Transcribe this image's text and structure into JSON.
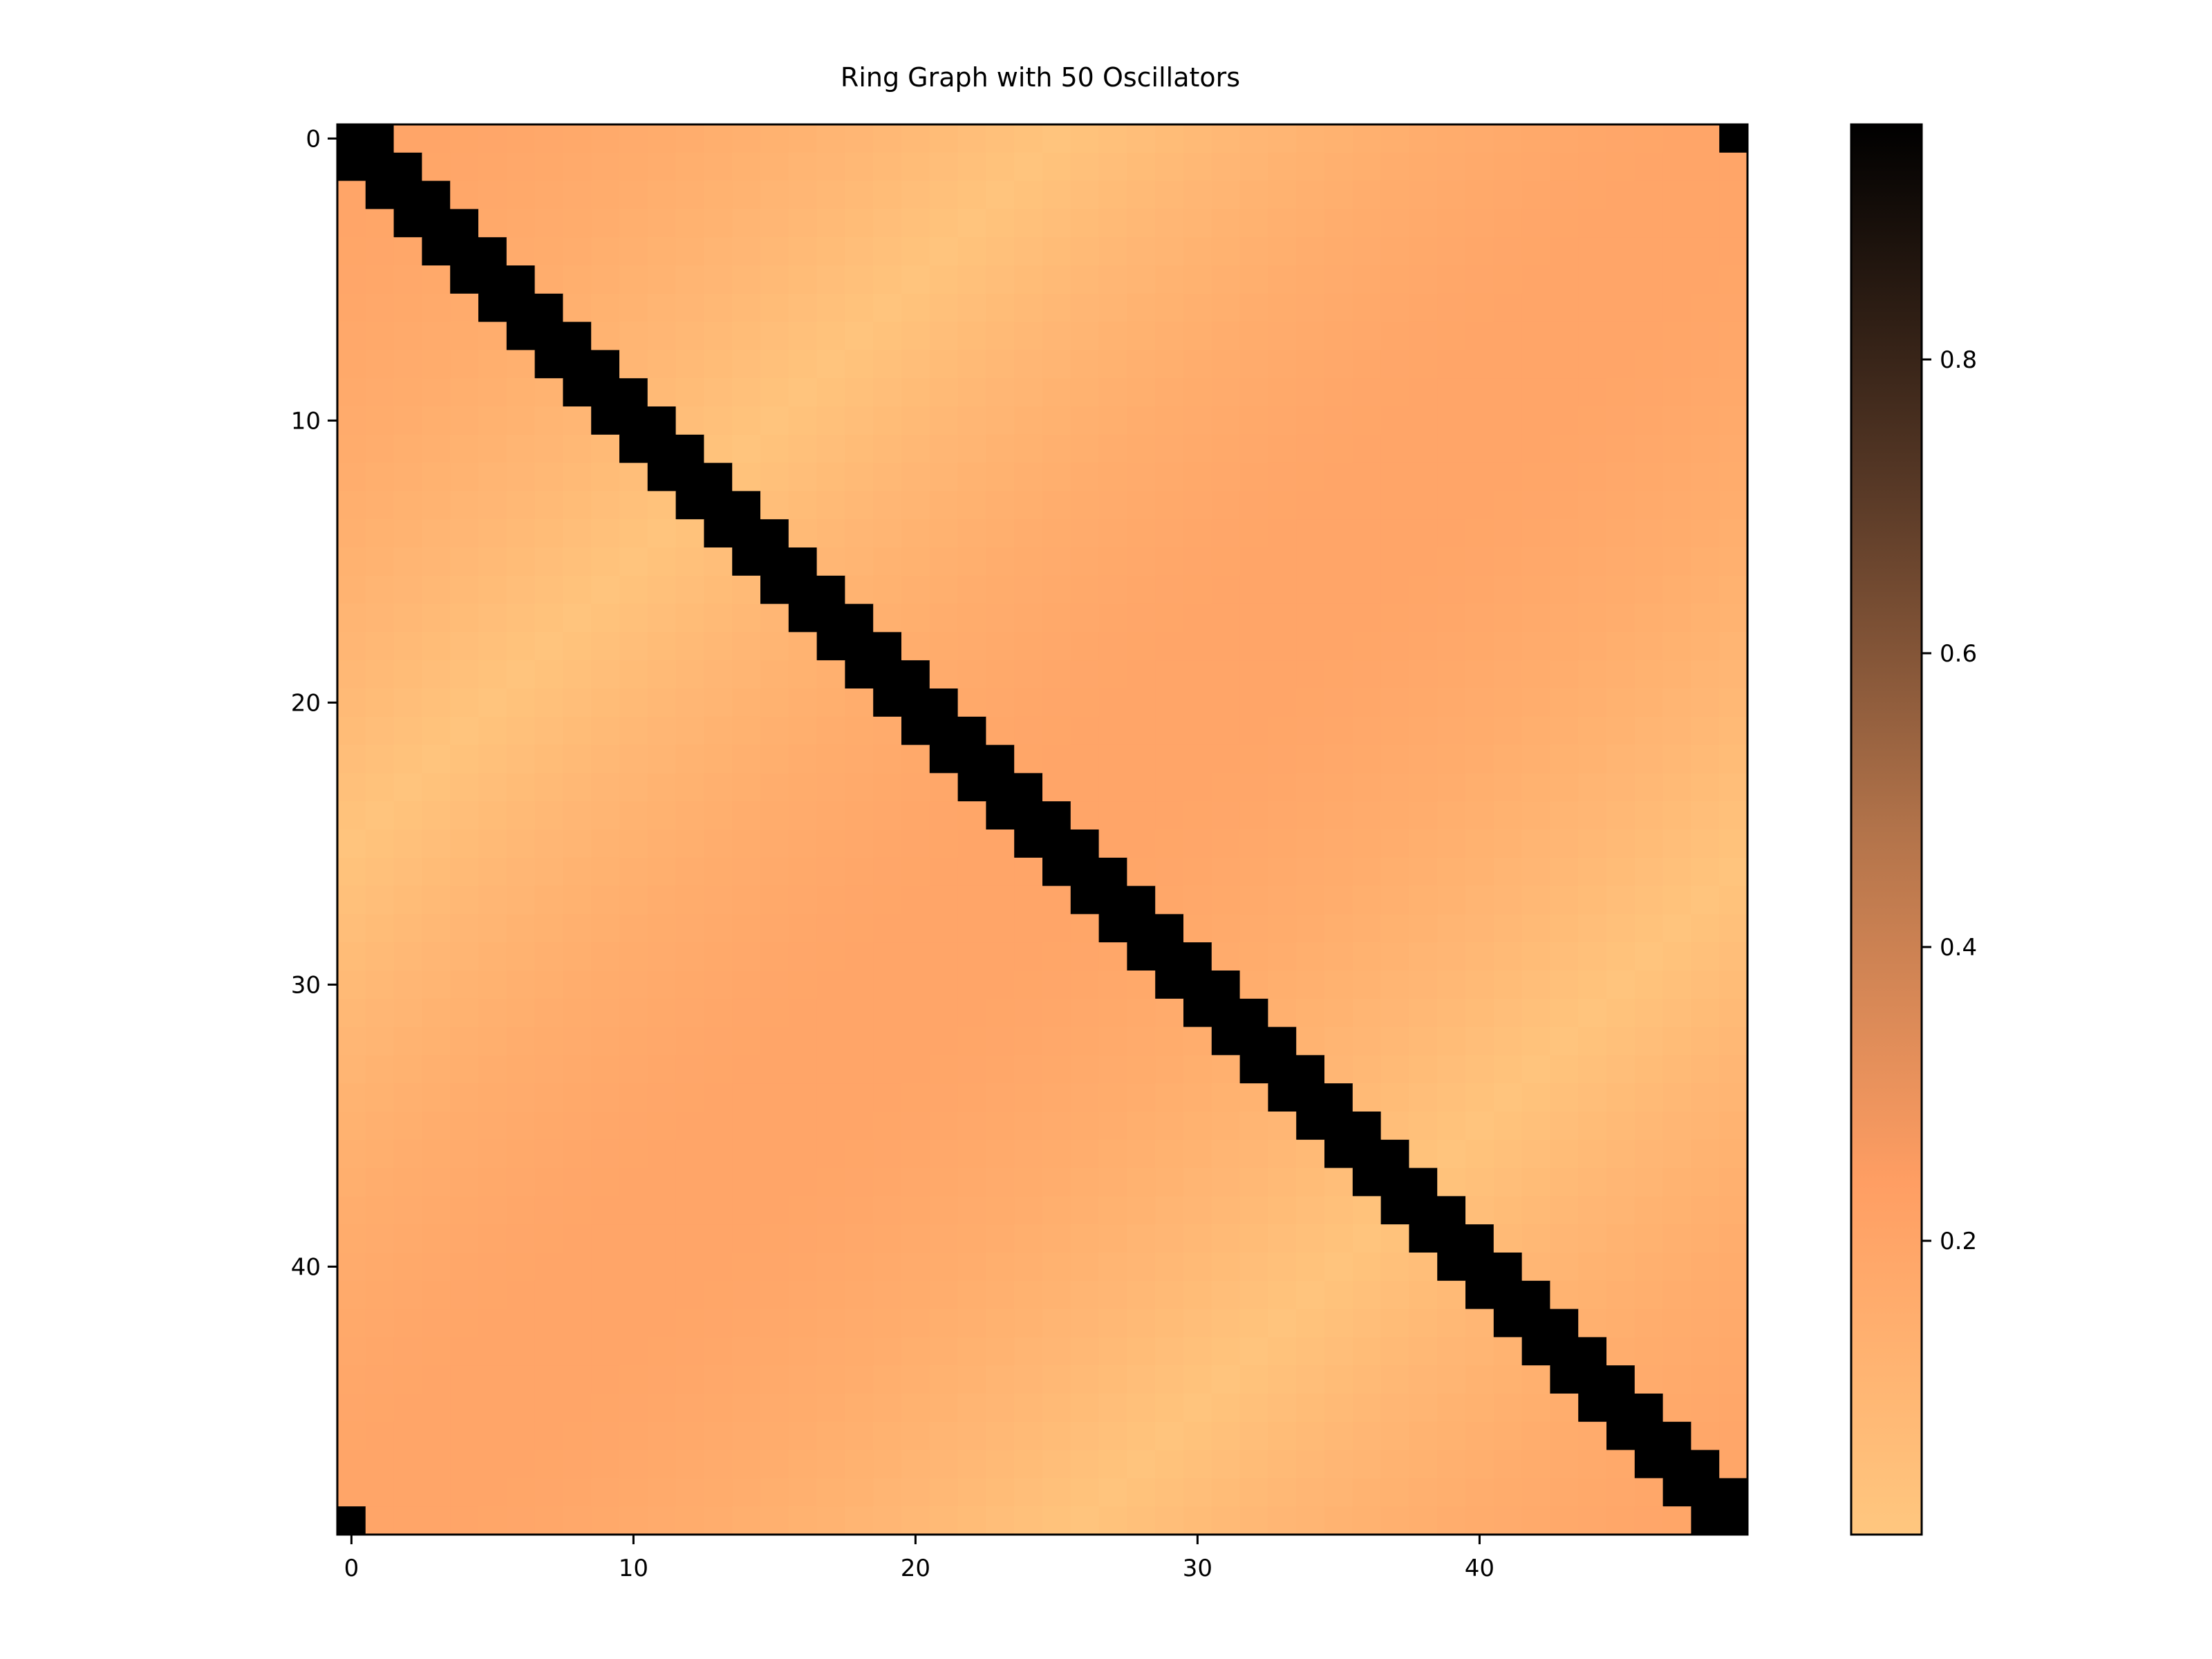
{
  "chart_data": {
    "type": "heatmap",
    "title": "Ring Graph with 50 Oscillators",
    "n": 50,
    "description_of_values": "",
    "xticks": [
      0,
      10,
      20,
      30,
      40
    ],
    "yticks": [
      0,
      10,
      20,
      30,
      40
    ],
    "colormap": "copper_r",
    "colorbar": {
      "range": [
        0.0,
        0.96
      ],
      "ticks": [
        0.2,
        0.4,
        0.6,
        0.8
      ],
      "tick_labels": [
        "0.2",
        "0.4",
        "0.6",
        "0.8"
      ]
    },
    "matrix_rule": {
      "band_value": 0.96,
      "band_width": 2,
      "background_max": 0.2,
      "background_min": 0.02
    },
    "colors": {
      "low": "#ffc77f",
      "high": "#000000",
      "axes": "#000000"
    }
  }
}
